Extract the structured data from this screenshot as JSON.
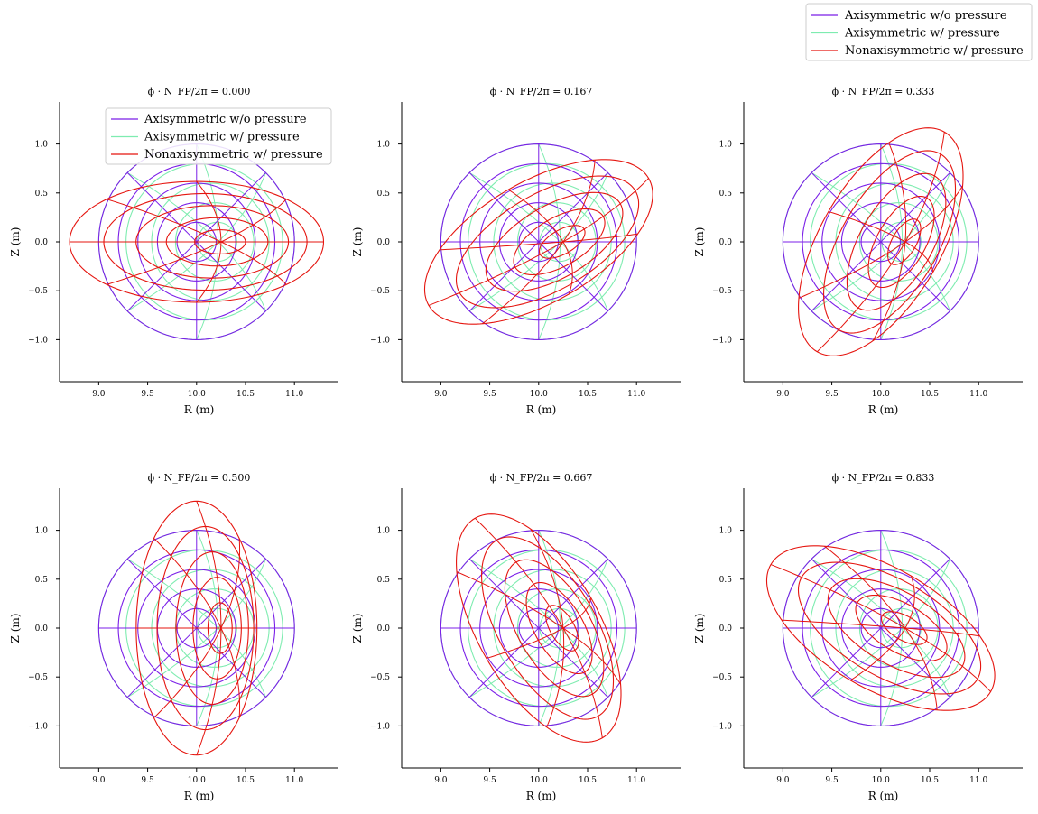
{
  "figure": {
    "legend": {
      "placement": "upper-right-outside",
      "entries": [
        "Axisymmetric w/o pressure",
        "Axisymmetric w/ pressure",
        "Nonaxisymmetric w/ pressure"
      ]
    },
    "colors": {
      "axisym_no_pressure": "#7b1fe8",
      "axisym_pressure": "#7eecb0",
      "nonaxisym_pressure": "#e5150f"
    }
  },
  "chart_data": [
    {
      "type": "line",
      "title": "ϕ · N_FP/2π = 0.000",
      "phase": 0.0,
      "xlabel": "R (m)",
      "ylabel": "Z (m)",
      "xlim": [
        8.6,
        11.45
      ],
      "ylim": [
        -1.43,
        1.43
      ],
      "xticks": [
        "9.0",
        "9.5",
        "10.0",
        "10.5",
        "11.0"
      ],
      "yticks": [
        "−1.0",
        "−0.5",
        "0.0",
        "0.5",
        "1.0"
      ],
      "legend": "upper-right",
      "axis_center": [
        10.0,
        0.0
      ],
      "axis_minor_radius": 1.0,
      "series": [
        {
          "name": "Axisymmetric w/o pressure"
        },
        {
          "name": "Axisymmetric w/ pressure"
        },
        {
          "name": "Nonaxisymmetric w/ pressure"
        }
      ]
    },
    {
      "type": "line",
      "title": "ϕ · N_FP/2π = 0.167",
      "phase": 0.167,
      "xlabel": "R (m)",
      "ylabel": "Z (m)",
      "xlim": [
        8.6,
        11.45
      ],
      "ylim": [
        -1.43,
        1.43
      ],
      "xticks": [
        "9.0",
        "9.5",
        "10.0",
        "10.5",
        "11.0"
      ],
      "yticks": [
        "−1.0",
        "−0.5",
        "0.0",
        "0.5",
        "1.0"
      ],
      "axis_center": [
        10.0,
        0.0
      ],
      "axis_minor_radius": 1.0,
      "series": [
        {
          "name": "Axisymmetric w/o pressure"
        },
        {
          "name": "Axisymmetric w/ pressure"
        },
        {
          "name": "Nonaxisymmetric w/ pressure"
        }
      ]
    },
    {
      "type": "line",
      "title": "ϕ · N_FP/2π = 0.333",
      "phase": 0.333,
      "xlabel": "R (m)",
      "ylabel": "Z (m)",
      "xlim": [
        8.6,
        11.45
      ],
      "ylim": [
        -1.43,
        1.43
      ],
      "xticks": [
        "9.0",
        "9.5",
        "10.0",
        "10.5",
        "11.0"
      ],
      "yticks": [
        "−1.0",
        "−0.5",
        "0.0",
        "0.5",
        "1.0"
      ],
      "axis_center": [
        10.0,
        0.0
      ],
      "axis_minor_radius": 1.0,
      "series": [
        {
          "name": "Axisymmetric w/o pressure"
        },
        {
          "name": "Axisymmetric w/ pressure"
        },
        {
          "name": "Nonaxisymmetric w/ pressure"
        }
      ]
    },
    {
      "type": "line",
      "title": "ϕ · N_FP/2π = 0.500",
      "phase": 0.5,
      "xlabel": "R (m)",
      "ylabel": "Z (m)",
      "xlim": [
        8.6,
        11.45
      ],
      "ylim": [
        -1.43,
        1.43
      ],
      "xticks": [
        "9.0",
        "9.5",
        "10.0",
        "10.5",
        "11.0"
      ],
      "yticks": [
        "−1.0",
        "−0.5",
        "0.0",
        "0.5",
        "1.0"
      ],
      "axis_center": [
        10.0,
        0.0
      ],
      "axis_minor_radius": 1.0,
      "series": [
        {
          "name": "Axisymmetric w/o pressure"
        },
        {
          "name": "Axisymmetric w/ pressure"
        },
        {
          "name": "Nonaxisymmetric w/ pressure"
        }
      ]
    },
    {
      "type": "line",
      "title": "ϕ · N_FP/2π = 0.667",
      "phase": 0.667,
      "xlabel": "R (m)",
      "ylabel": "Z (m)",
      "xlim": [
        8.6,
        11.45
      ],
      "ylim": [
        -1.43,
        1.43
      ],
      "xticks": [
        "9.0",
        "9.5",
        "10.0",
        "10.5",
        "11.0"
      ],
      "yticks": [
        "−1.0",
        "−0.5",
        "0.0",
        "0.5",
        "1.0"
      ],
      "axis_center": [
        10.0,
        0.0
      ],
      "axis_minor_radius": 1.0,
      "series": [
        {
          "name": "Axisymmetric w/o pressure"
        },
        {
          "name": "Axisymmetric w/ pressure"
        },
        {
          "name": "Nonaxisymmetric w/ pressure"
        }
      ]
    },
    {
      "type": "line",
      "title": "ϕ · N_FP/2π = 0.833",
      "phase": 0.833,
      "xlabel": "R (m)",
      "ylabel": "Z (m)",
      "xlim": [
        8.6,
        11.45
      ],
      "ylim": [
        -1.43,
        1.43
      ],
      "xticks": [
        "9.0",
        "9.5",
        "10.0",
        "10.5",
        "11.0"
      ],
      "yticks": [
        "−1.0",
        "−0.5",
        "0.0",
        "0.5",
        "1.0"
      ],
      "axis_center": [
        10.0,
        0.0
      ],
      "axis_minor_radius": 1.0,
      "series": [
        {
          "name": "Axisymmetric w/o pressure"
        },
        {
          "name": "Axisymmetric w/ pressure"
        },
        {
          "name": "Nonaxisymmetric w/ pressure"
        }
      ]
    }
  ]
}
